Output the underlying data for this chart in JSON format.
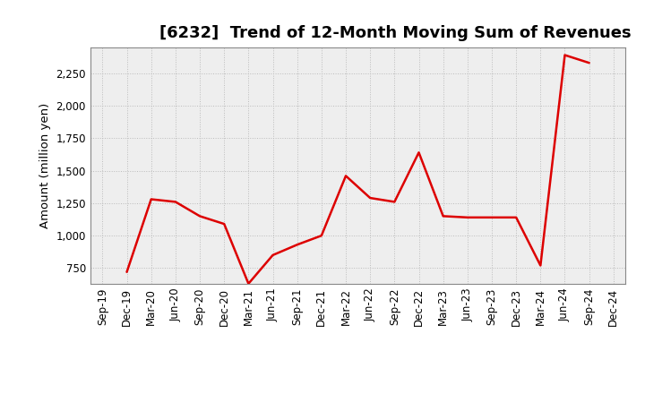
{
  "title": "[6232]  Trend of 12-Month Moving Sum of Revenues",
  "ylabel": "Amount (million yen)",
  "line_color": "#DD0000",
  "line_width": 1.8,
  "background_color": "#FFFFFF",
  "plot_bg_color": "#EEEEEE",
  "grid_color": "#BBBBBB",
  "labels": [
    "Sep-19",
    "Dec-19",
    "Mar-20",
    "Jun-20",
    "Sep-20",
    "Dec-20",
    "Mar-21",
    "Jun-21",
    "Sep-21",
    "Dec-21",
    "Mar-22",
    "Jun-22",
    "Sep-22",
    "Dec-22",
    "Mar-23",
    "Jun-23",
    "Sep-23",
    "Dec-23",
    "Mar-24",
    "Jun-24",
    "Sep-24",
    "Dec-24"
  ],
  "values": [
    null,
    720,
    1280,
    1260,
    1150,
    1090,
    630,
    850,
    930,
    1000,
    1460,
    1290,
    1260,
    1640,
    1150,
    1140,
    1140,
    1140,
    770,
    2390,
    2330,
    null
  ],
  "ylim": [
    630,
    2450
  ],
  "yticks": [
    750,
    1000,
    1250,
    1500,
    1750,
    2000,
    2250
  ],
  "title_fontsize": 13,
  "tick_fontsize": 8.5,
  "ylabel_fontsize": 9.5
}
